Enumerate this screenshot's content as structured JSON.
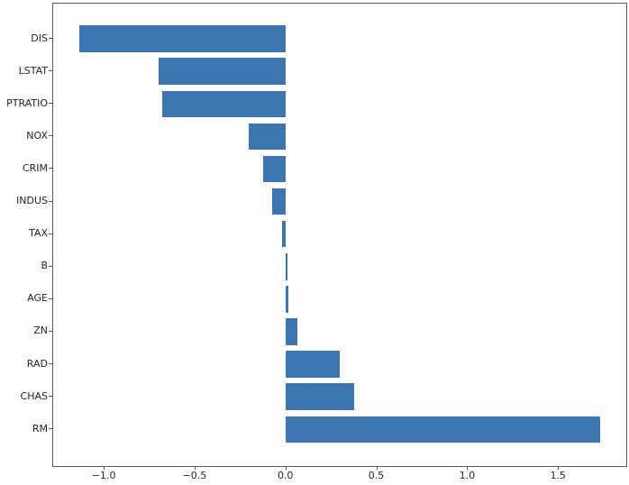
{
  "figure": {
    "background_color": "#ffffff",
    "title": ""
  },
  "style": {
    "bar_color": "#3b76b0",
    "spine_color": "#5a5a5a",
    "tick_label_color": "#262626"
  },
  "chart_data": {
    "type": "bar",
    "orientation": "horizontal",
    "title": "",
    "xlabel": "",
    "ylabel": "",
    "grid": false,
    "legend": "none",
    "categories_top_to_bottom": [
      "DIS",
      "LSTAT",
      "PTRATIO",
      "NOX",
      "CRIM",
      "INDUS",
      "TAX",
      "B",
      "AGE",
      "ZN",
      "RAD",
      "CHAS",
      "RM"
    ],
    "values": [
      -1.135,
      -0.7,
      -0.678,
      -0.2,
      -0.124,
      -0.074,
      -0.018,
      0.012,
      0.018,
      0.065,
      0.301,
      0.379,
      1.731
    ],
    "xlim": [
      -1.278,
      1.876
    ],
    "x_ticks": [
      -1.0,
      -0.5,
      0.0,
      0.5,
      1.0,
      1.5
    ],
    "x_tick_labels": [
      "−1.0",
      "−0.5",
      "0.0",
      "0.5",
      "1.0",
      "1.5"
    ],
    "bar_color": "#3b76b0"
  }
}
